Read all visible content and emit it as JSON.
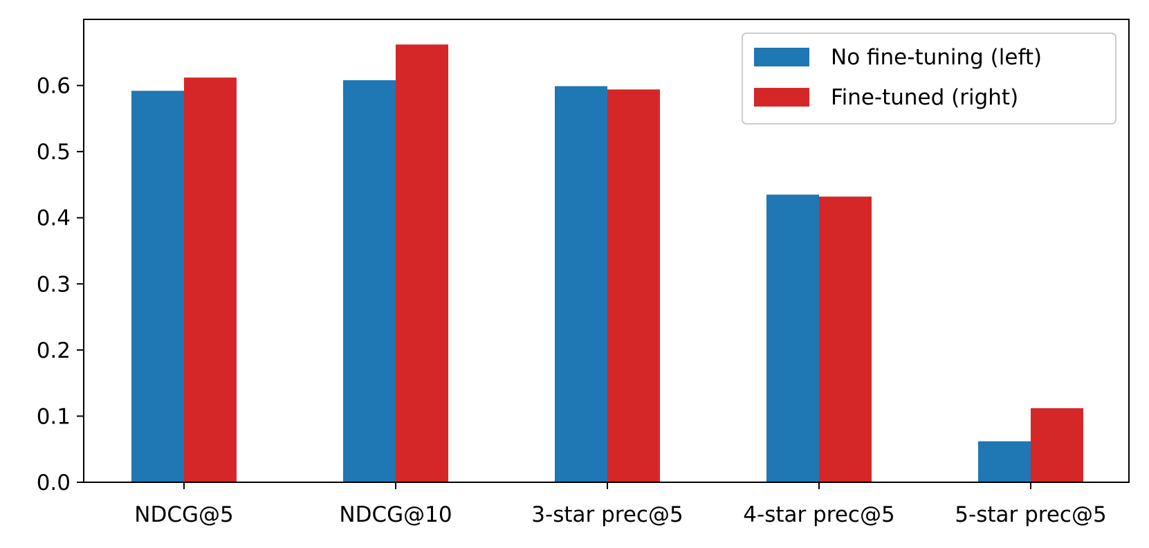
{
  "chart_data": {
    "type": "bar",
    "title": "",
    "xlabel": "",
    "ylabel": "",
    "categories": [
      "NDCG@5",
      "NDCG@10",
      "3-star prec@5",
      "4-star prec@5",
      "5-star prec@5"
    ],
    "series": [
      {
        "name": "No fine-tuning (left)",
        "color": "#1f77b4",
        "values": [
          0.592,
          0.608,
          0.599,
          0.435,
          0.062
        ]
      },
      {
        "name": "Fine-tuned (right)",
        "color": "#d62728",
        "values": [
          0.612,
          0.662,
          0.594,
          0.432,
          0.112
        ]
      }
    ],
    "ylim": [
      0,
      0.7
    ],
    "yticks": [
      0.0,
      0.1,
      0.2,
      0.3,
      0.4,
      0.5,
      0.6
    ],
    "ytick_labels": [
      "0.0",
      "0.1",
      "0.2",
      "0.3",
      "0.4",
      "0.5",
      "0.6"
    ],
    "grid": false,
    "legend_position": "top-right"
  }
}
